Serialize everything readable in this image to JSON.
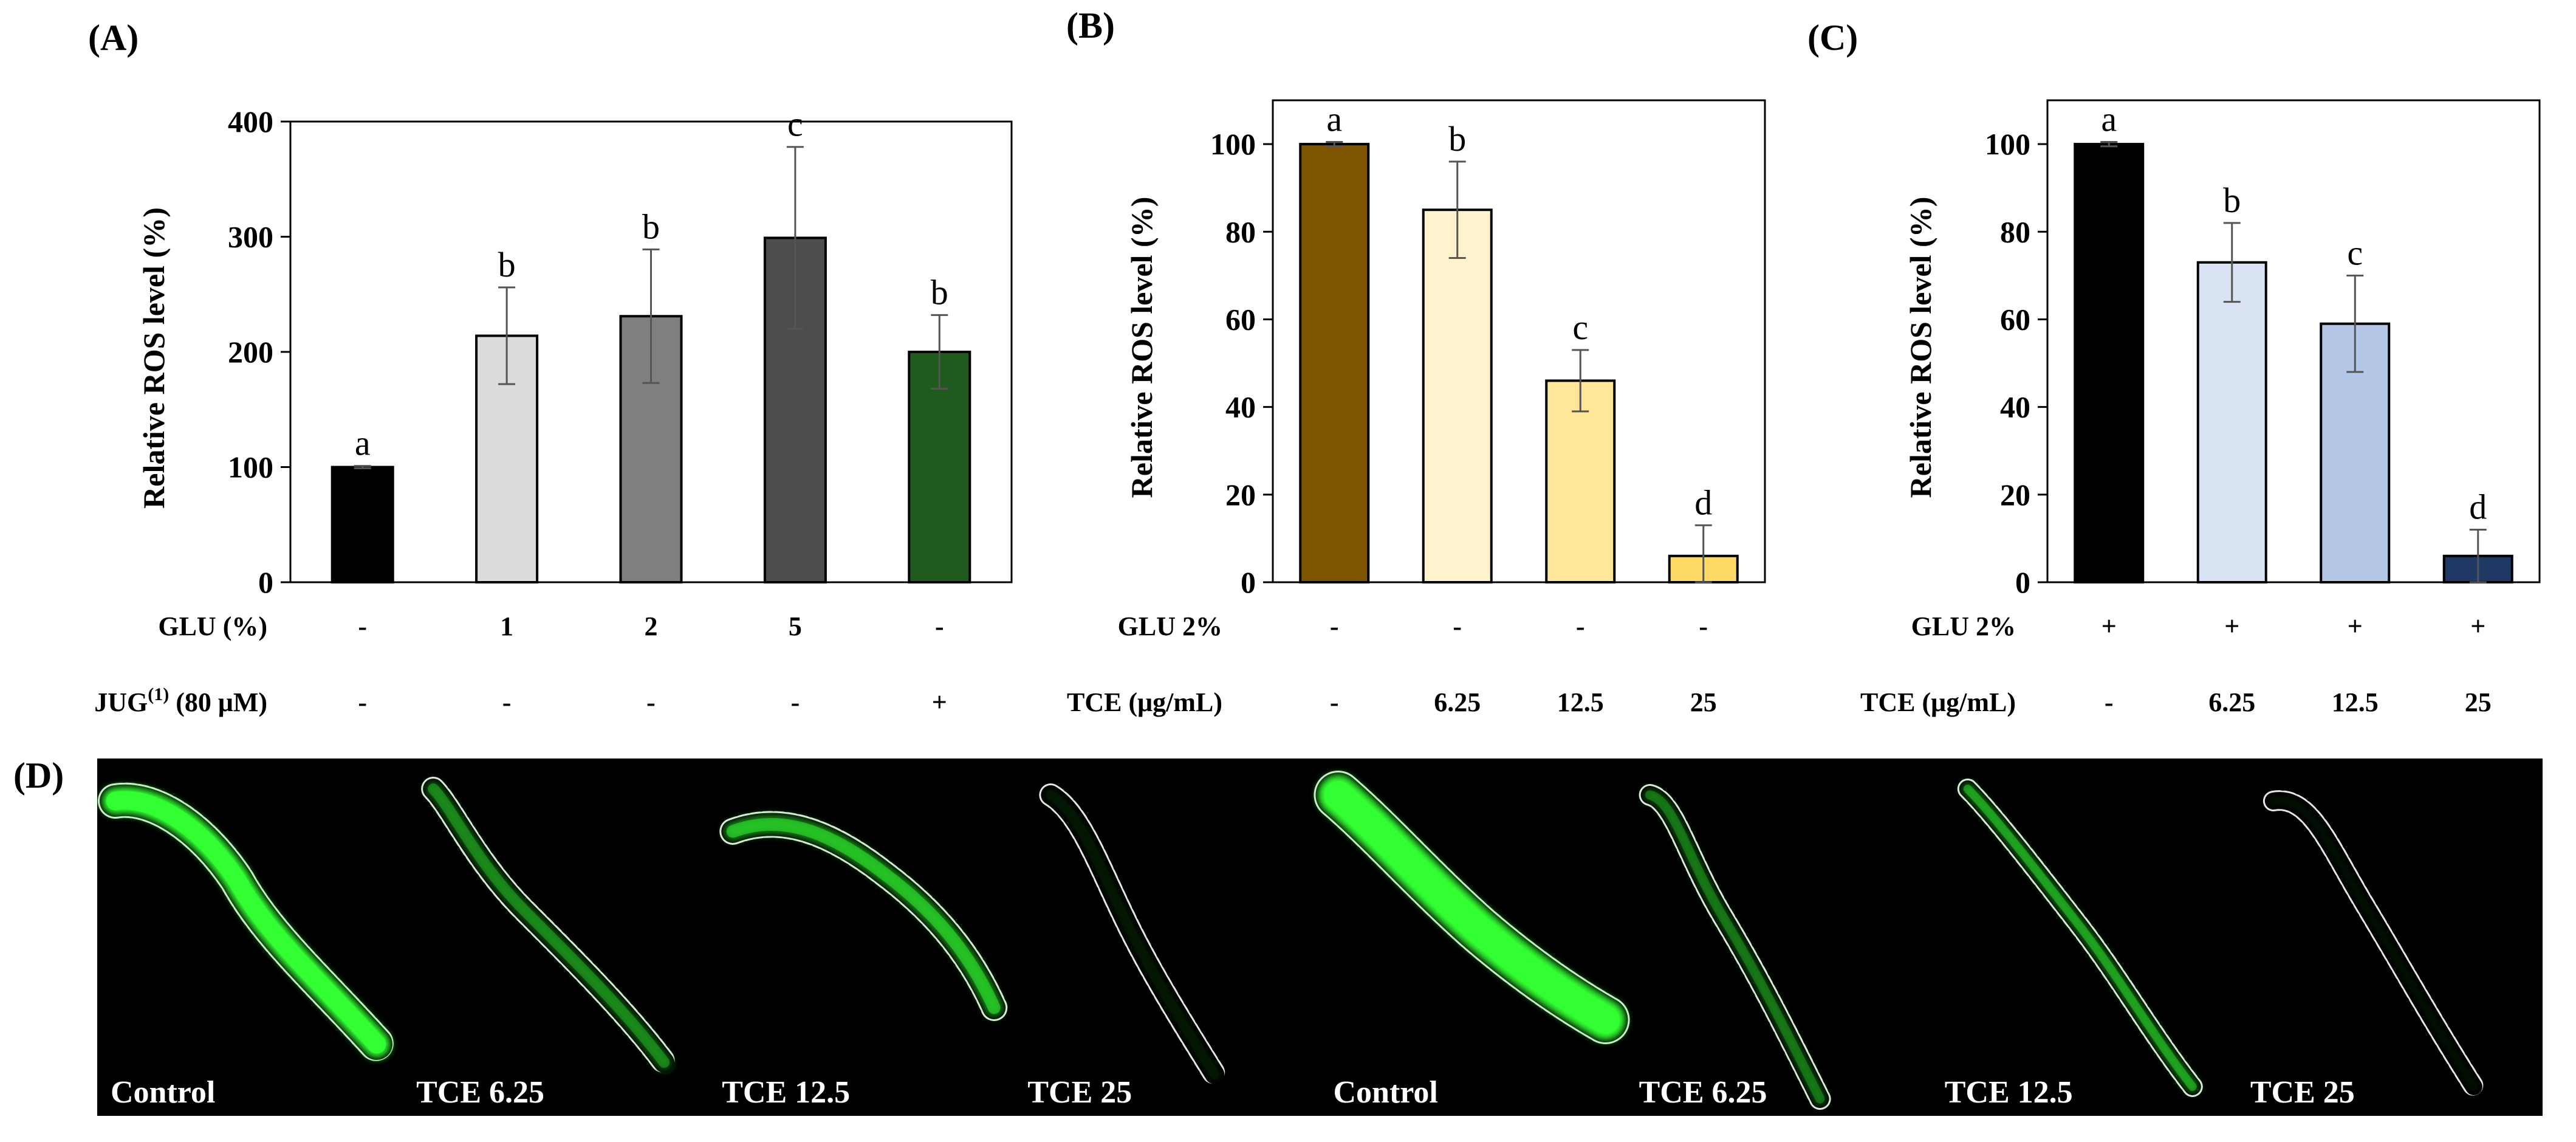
{
  "panels": {
    "A": "(A)",
    "B": "(B)",
    "C": "(C)",
    "D": "(D)"
  },
  "chart_data": [
    {
      "id": "A",
      "type": "bar",
      "ylabel": "Relative ROS level (%)",
      "ylim": [
        0,
        400
      ],
      "yticks": [
        0,
        100,
        200,
        300,
        400
      ],
      "categories": [
        "1",
        "2",
        "3",
        "4",
        "5"
      ],
      "values": [
        100,
        214,
        231,
        299,
        200
      ],
      "errors": [
        1,
        42,
        58,
        79,
        32
      ],
      "letters": [
        "a",
        "b",
        "b",
        "c",
        "b"
      ],
      "colors": [
        "#000000",
        "#dcdcdc",
        "#7f7f7f",
        "#4d4d4d",
        "#1f5a1f"
      ],
      "conditions": [
        {
          "label": "GLU (%)",
          "sup": "",
          "label_rest": "",
          "values": [
            "-",
            "1",
            "2",
            "5",
            "-"
          ]
        },
        {
          "label": "JUG",
          "sup": "(1)",
          "label_rest": " (80 μM)",
          "values": [
            "-",
            "-",
            "-",
            "-",
            "+"
          ]
        }
      ]
    },
    {
      "id": "B",
      "type": "bar",
      "ylabel": "Relative ROS level (%)",
      "ylim": [
        0,
        110
      ],
      "yticks": [
        0,
        20,
        40,
        60,
        80,
        100
      ],
      "categories": [
        "1",
        "2",
        "3",
        "4"
      ],
      "values": [
        100,
        85,
        46,
        6
      ],
      "errors": [
        0.5,
        11,
        7,
        7
      ],
      "letters": [
        "a",
        "b",
        "c",
        "d"
      ],
      "colors": [
        "#7f5400",
        "#fff2cc",
        "#ffe699",
        "#ffd966"
      ],
      "conditions": [
        {
          "label": "GLU 2%",
          "sup": "",
          "label_rest": "",
          "values": [
            "-",
            "-",
            "-",
            "-"
          ]
        },
        {
          "label": "TCE (μg/mL)",
          "sup": "",
          "label_rest": "",
          "values": [
            "-",
            "6.25",
            "12.5",
            "25"
          ]
        }
      ]
    },
    {
      "id": "C",
      "type": "bar",
      "ylabel": "Relative ROS level (%)",
      "ylim": [
        0,
        110
      ],
      "yticks": [
        0,
        20,
        40,
        60,
        80,
        100
      ],
      "categories": [
        "1",
        "2",
        "3",
        "4"
      ],
      "values": [
        100,
        73,
        59,
        6
      ],
      "errors": [
        0.5,
        9,
        11,
        6
      ],
      "letters": [
        "a",
        "b",
        "c",
        "d"
      ],
      "colors": [
        "#000000",
        "#dae3f3",
        "#b4c7e7",
        "#1f3864"
      ],
      "conditions": [
        {
          "label": "GLU 2%",
          "sup": "",
          "label_rest": "",
          "values": [
            "+",
            "+",
            "+",
            "+"
          ]
        },
        {
          "label": "TCE (μg/mL)",
          "sup": "",
          "label_rest": "",
          "values": [
            "-",
            "6.25",
            "12.5",
            "25"
          ]
        }
      ]
    }
  ],
  "images": {
    "captions": [
      "Control",
      "TCE 6.25",
      "TCE 12.5",
      "TCE 25",
      "Control",
      "TCE 6.25",
      "TCE 12.5",
      "TCE 25"
    ],
    "intensity": [
      1.0,
      0.35,
      0.55,
      0.05,
      1.0,
      0.3,
      0.45,
      0.03
    ],
    "fluorescence_color": "#33ff33"
  }
}
